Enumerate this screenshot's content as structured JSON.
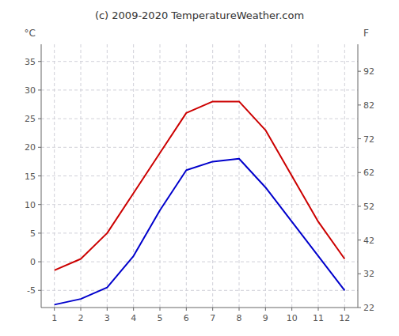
{
  "chart_data": {
    "type": "line",
    "title": "(c) 2009-2020 TemperatureWeather.com",
    "y_label": "°C",
    "y2_label": "F",
    "x": [
      1,
      2,
      3,
      4,
      5,
      6,
      7,
      8,
      9,
      10,
      11,
      12
    ],
    "xlim": [
      0.5,
      12.5
    ],
    "xticks": [
      1,
      2,
      3,
      4,
      5,
      6,
      7,
      8,
      9,
      10,
      11,
      12
    ],
    "ylim": [
      -8,
      38
    ],
    "yticks": [
      -5,
      0,
      5,
      10,
      15,
      20,
      25,
      30,
      35
    ],
    "y2lim": [
      22,
      100
    ],
    "y2ticks": [
      22,
      32,
      42,
      52,
      62,
      72,
      82,
      92
    ],
    "grid": true,
    "series": [
      {
        "color": "#cc0000",
        "values": [
          -1.5,
          0.5,
          5.0,
          12.0,
          19.0,
          26.0,
          28.0,
          28.0,
          23.0,
          15.0,
          7.0,
          0.5
        ]
      },
      {
        "color": "#0000cc",
        "values": [
          -7.5,
          -6.5,
          -4.5,
          1.0,
          9.0,
          16.0,
          17.5,
          18.0,
          13.0,
          7.0,
          1.0,
          -5.0
        ]
      }
    ]
  }
}
